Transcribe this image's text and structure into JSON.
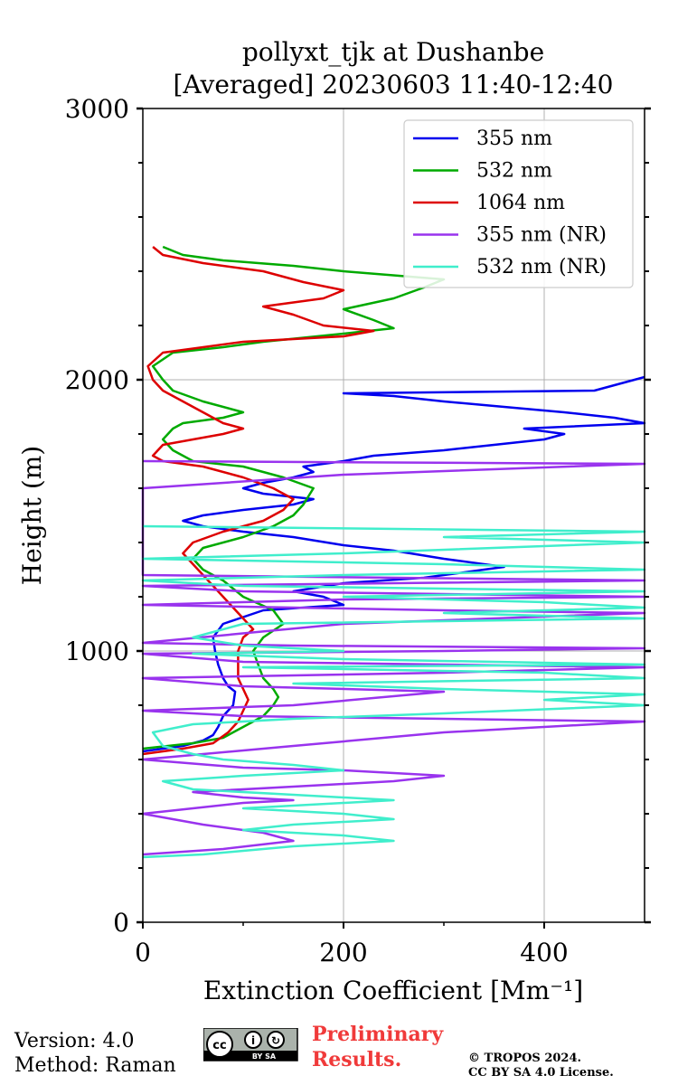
{
  "chart_data": {
    "type": "line",
    "title": [
      "pollyxt_tjk at Dushanbe",
      "[Averaged] 20230603 11:40-12:40"
    ],
    "xlabel": "Extinction Coefficient [Mm⁻¹]",
    "ylabel": "Height (m)",
    "xlim": [
      0,
      500
    ],
    "ylim": [
      0,
      3000
    ],
    "xticks": [
      "0",
      "200",
      "400"
    ],
    "xtick_values": [
      0,
      200,
      400
    ],
    "yticks": [
      "0",
      "1000",
      "2000",
      "3000"
    ],
    "ytick_values": [
      0,
      1000,
      2000,
      3000
    ],
    "grid": true,
    "legend_position": "top-right",
    "series": [
      {
        "name": "355 nm",
        "color": "#0000ee",
        "points": [
          [
            0,
            630
          ],
          [
            40,
            650
          ],
          [
            60,
            670
          ],
          [
            70,
            690
          ],
          [
            75,
            720
          ],
          [
            80,
            760
          ],
          [
            90,
            800
          ],
          [
            92,
            850
          ],
          [
            85,
            870
          ],
          [
            80,
            900
          ],
          [
            75,
            950
          ],
          [
            72,
            1000
          ],
          [
            70,
            1050
          ],
          [
            80,
            1100
          ],
          [
            120,
            1150
          ],
          [
            200,
            1170
          ],
          [
            180,
            1200
          ],
          [
            150,
            1220
          ],
          [
            200,
            1250
          ],
          [
            280,
            1270
          ],
          [
            340,
            1300
          ],
          [
            360,
            1310
          ],
          [
            300,
            1340
          ],
          [
            250,
            1370
          ],
          [
            200,
            1390
          ],
          [
            150,
            1420
          ],
          [
            100,
            1440
          ],
          [
            60,
            1460
          ],
          [
            40,
            1480
          ],
          [
            60,
            1500
          ],
          [
            100,
            1520
          ],
          [
            150,
            1540
          ],
          [
            170,
            1560
          ],
          [
            120,
            1580
          ],
          [
            100,
            1600
          ],
          [
            120,
            1620
          ],
          [
            150,
            1640
          ],
          [
            170,
            1660
          ],
          [
            160,
            1680
          ],
          [
            200,
            1700
          ],
          [
            230,
            1720
          ],
          [
            300,
            1740
          ],
          [
            350,
            1760
          ],
          [
            400,
            1780
          ],
          [
            420,
            1800
          ],
          [
            380,
            1820
          ],
          [
            500,
            1840
          ],
          [
            470,
            1860
          ],
          [
            420,
            1880
          ],
          [
            360,
            1900
          ],
          [
            300,
            1920
          ],
          [
            250,
            1940
          ],
          [
            200,
            1950
          ],
          [
            450,
            1960
          ],
          [
            470,
            1980
          ],
          [
            500,
            2010
          ]
        ]
      },
      {
        "name": "532 nm",
        "color": "#00aa00",
        "points": [
          [
            0,
            640
          ],
          [
            50,
            660
          ],
          [
            80,
            680
          ],
          [
            100,
            720
          ],
          [
            120,
            760
          ],
          [
            130,
            800
          ],
          [
            135,
            830
          ],
          [
            130,
            860
          ],
          [
            120,
            900
          ],
          [
            115,
            950
          ],
          [
            110,
            1000
          ],
          [
            120,
            1050
          ],
          [
            140,
            1100
          ],
          [
            130,
            1150
          ],
          [
            100,
            1200
          ],
          [
            80,
            1260
          ],
          [
            60,
            1300
          ],
          [
            50,
            1340
          ],
          [
            60,
            1380
          ],
          [
            100,
            1420
          ],
          [
            130,
            1460
          ],
          [
            150,
            1500
          ],
          [
            160,
            1540
          ],
          [
            170,
            1600
          ],
          [
            140,
            1640
          ],
          [
            100,
            1680
          ],
          [
            50,
            1700
          ],
          [
            30,
            1740
          ],
          [
            20,
            1780
          ],
          [
            30,
            1820
          ],
          [
            40,
            1840
          ],
          [
            80,
            1860
          ],
          [
            100,
            1880
          ],
          [
            60,
            1920
          ],
          [
            30,
            1960
          ],
          [
            20,
            2000
          ],
          [
            10,
            2050
          ],
          [
            30,
            2100
          ],
          [
            80,
            2120
          ],
          [
            120,
            2140
          ],
          [
            200,
            2170
          ],
          [
            250,
            2190
          ],
          [
            230,
            2220
          ],
          [
            200,
            2260
          ],
          [
            250,
            2300
          ],
          [
            280,
            2340
          ],
          [
            300,
            2370
          ],
          [
            200,
            2400
          ],
          [
            150,
            2420
          ],
          [
            80,
            2440
          ],
          [
            40,
            2460
          ],
          [
            20,
            2490
          ]
        ]
      },
      {
        "name": "1064 nm",
        "color": "#dd0000",
        "points": [
          [
            0,
            620
          ],
          [
            40,
            640
          ],
          [
            70,
            660
          ],
          [
            85,
            700
          ],
          [
            95,
            740
          ],
          [
            100,
            780
          ],
          [
            105,
            820
          ],
          [
            100,
            860
          ],
          [
            95,
            900
          ],
          [
            95,
            950
          ],
          [
            95,
            1000
          ],
          [
            100,
            1050
          ],
          [
            110,
            1080
          ],
          [
            100,
            1120
          ],
          [
            90,
            1160
          ],
          [
            80,
            1200
          ],
          [
            70,
            1240
          ],
          [
            60,
            1280
          ],
          [
            50,
            1320
          ],
          [
            40,
            1360
          ],
          [
            50,
            1400
          ],
          [
            80,
            1440
          ],
          [
            120,
            1480
          ],
          [
            140,
            1520
          ],
          [
            150,
            1560
          ],
          [
            130,
            1600
          ],
          [
            100,
            1640
          ],
          [
            60,
            1680
          ],
          [
            20,
            1700
          ],
          [
            10,
            1720
          ],
          [
            20,
            1760
          ],
          [
            50,
            1780
          ],
          [
            80,
            1800
          ],
          [
            100,
            1820
          ],
          [
            80,
            1840
          ],
          [
            60,
            1880
          ],
          [
            40,
            1920
          ],
          [
            20,
            1960
          ],
          [
            10,
            2000
          ],
          [
            5,
            2050
          ],
          [
            20,
            2100
          ],
          [
            100,
            2140
          ],
          [
            200,
            2160
          ],
          [
            230,
            2180
          ],
          [
            180,
            2200
          ],
          [
            150,
            2240
          ],
          [
            120,
            2270
          ],
          [
            180,
            2300
          ],
          [
            200,
            2330
          ],
          [
            160,
            2360
          ],
          [
            120,
            2400
          ],
          [
            60,
            2430
          ],
          [
            20,
            2460
          ],
          [
            10,
            2490
          ]
        ]
      },
      {
        "name": "355 nm (NR)",
        "color": "#9933ee",
        "points": [
          [
            0,
            250
          ],
          [
            80,
            270
          ],
          [
            150,
            300
          ],
          [
            120,
            330
          ],
          [
            60,
            360
          ],
          [
            0,
            400
          ],
          [
            50,
            420
          ],
          [
            100,
            440
          ],
          [
            150,
            450
          ],
          [
            100,
            460
          ],
          [
            50,
            480
          ],
          [
            150,
            500
          ],
          [
            250,
            520
          ],
          [
            300,
            540
          ],
          [
            200,
            560
          ],
          [
            100,
            570
          ],
          [
            0,
            600
          ],
          [
            150,
            650
          ],
          [
            300,
            700
          ],
          [
            500,
            740
          ],
          [
            100,
            760
          ],
          [
            0,
            780
          ],
          [
            150,
            800
          ],
          [
            300,
            850
          ],
          [
            100,
            870
          ],
          [
            0,
            900
          ],
          [
            300,
            920
          ],
          [
            500,
            940
          ],
          [
            100,
            960
          ],
          [
            0,
            990
          ],
          [
            300,
            1000
          ],
          [
            500,
            1010
          ],
          [
            150,
            1020
          ],
          [
            0,
            1030
          ],
          [
            200,
            1100
          ],
          [
            500,
            1140
          ],
          [
            300,
            1150
          ],
          [
            0,
            1170
          ],
          [
            200,
            1190
          ],
          [
            500,
            1200
          ],
          [
            100,
            1220
          ],
          [
            0,
            1240
          ],
          [
            250,
            1250
          ],
          [
            500,
            1260
          ],
          [
            0,
            1280
          ],
          [
            0,
            1600
          ],
          [
            200,
            1650
          ],
          [
            500,
            1690
          ],
          [
            0,
            1700
          ]
        ]
      },
      {
        "name": "532 nm (NR)",
        "color": "#40eecc",
        "points": [
          [
            0,
            240
          ],
          [
            60,
            250
          ],
          [
            150,
            280
          ],
          [
            250,
            300
          ],
          [
            200,
            320
          ],
          [
            100,
            340
          ],
          [
            150,
            360
          ],
          [
            250,
            380
          ],
          [
            200,
            400
          ],
          [
            100,
            420
          ],
          [
            200,
            440
          ],
          [
            250,
            450
          ],
          [
            150,
            470
          ],
          [
            50,
            490
          ],
          [
            20,
            520
          ],
          [
            100,
            540
          ],
          [
            200,
            560
          ],
          [
            150,
            580
          ],
          [
            80,
            600
          ],
          [
            50,
            620
          ],
          [
            20,
            650
          ],
          [
            10,
            700
          ],
          [
            50,
            730
          ],
          [
            150,
            750
          ],
          [
            300,
            770
          ],
          [
            500,
            800
          ],
          [
            400,
            820
          ],
          [
            500,
            840
          ],
          [
            300,
            860
          ],
          [
            150,
            880
          ],
          [
            500,
            900
          ],
          [
            400,
            920
          ],
          [
            100,
            940
          ],
          [
            500,
            950
          ],
          [
            200,
            970
          ],
          [
            50,
            990
          ],
          [
            200,
            1000
          ],
          [
            100,
            1020
          ],
          [
            50,
            1050
          ],
          [
            100,
            1100
          ],
          [
            500,
            1120
          ],
          [
            300,
            1140
          ],
          [
            500,
            1160
          ],
          [
            400,
            1180
          ],
          [
            200,
            1200
          ],
          [
            500,
            1220
          ],
          [
            100,
            1240
          ],
          [
            0,
            1260
          ],
          [
            200,
            1280
          ],
          [
            500,
            1300
          ],
          [
            300,
            1320
          ],
          [
            0,
            1340
          ],
          [
            200,
            1360
          ],
          [
            500,
            1400
          ],
          [
            300,
            1420
          ],
          [
            500,
            1440
          ],
          [
            0,
            1460
          ]
        ]
      }
    ]
  },
  "footer": {
    "version": "Version: 4.0",
    "method": "Method: Raman",
    "preliminary_line1": "Preliminary",
    "preliminary_line2": "Results.",
    "copyright_line1": "© TROPOS 2024.",
    "copyright_line2": "CC BY SA 4.0 License.",
    "cc_badge_text": "BY SA"
  }
}
